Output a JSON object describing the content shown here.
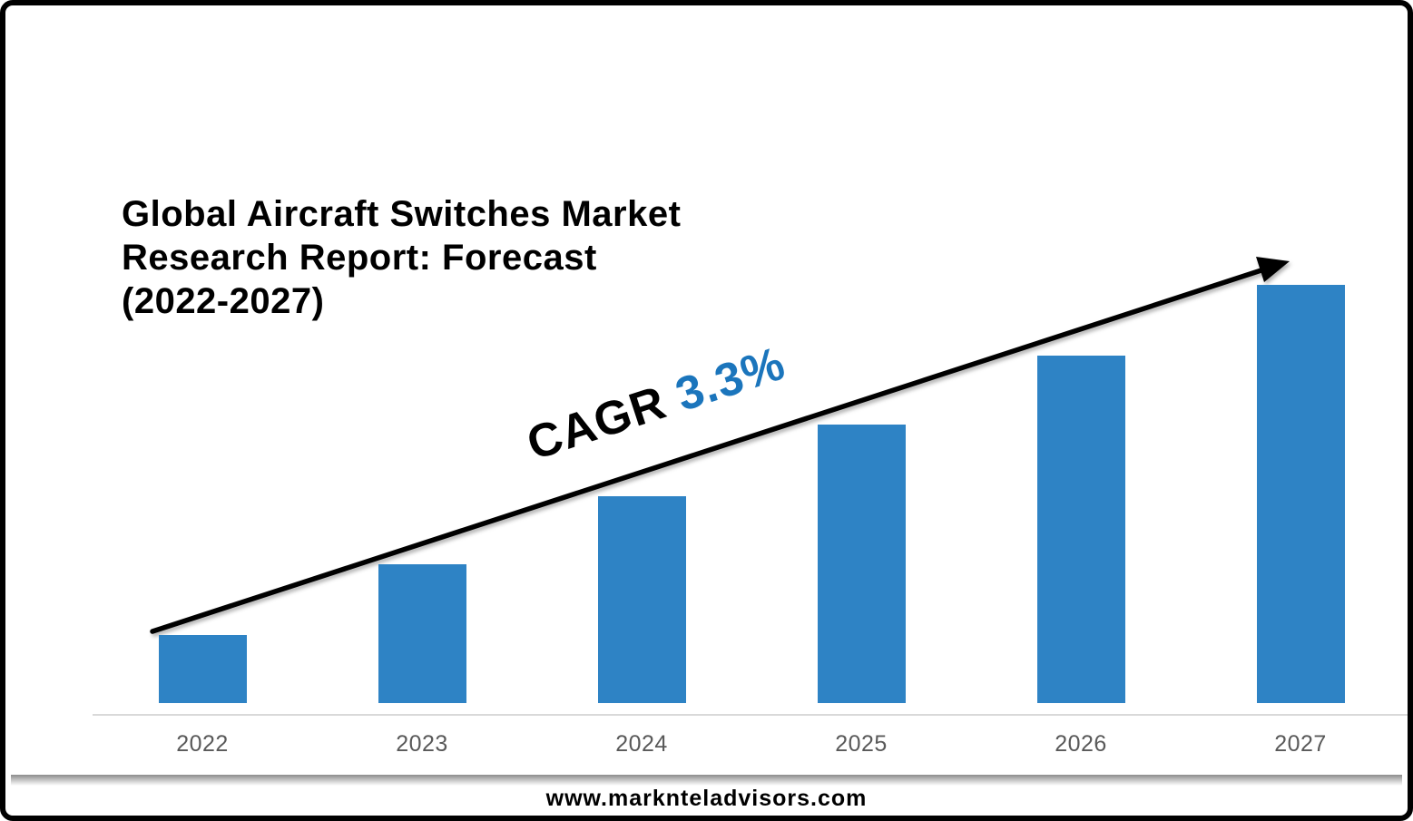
{
  "header": {
    "title": "Global Aircraft Switches Market\nResearch Report: Forecast\n(2022-2027)"
  },
  "annotation": {
    "prefix": "CAGR ",
    "value": "3.3%"
  },
  "footer": {
    "url": "www.marknteladvisors.com"
  },
  "colors": {
    "bar": "#2E83C5",
    "cagr_value": "#1B75BC",
    "axis_line": "#D9D9D9",
    "tick_label": "#595959",
    "frame": "#000000",
    "arrow": "#000000"
  },
  "chart_data": {
    "type": "bar",
    "title": "Global Aircraft Switches Market Research Report: Forecast (2022-2027)",
    "categories": [
      "2022",
      "2023",
      "2024",
      "2025",
      "2026",
      "2027"
    ],
    "values": [
      75,
      153,
      228,
      307,
      383,
      461
    ],
    "values_note": "relative bar heights in px; chart shows no numeric value axis",
    "cagr_percent": 3.3,
    "annotation": "CAGR 3.3%",
    "xlabel": "",
    "ylabel": "",
    "legend": "none",
    "grid": false,
    "bar_color": "#2E83C5"
  }
}
